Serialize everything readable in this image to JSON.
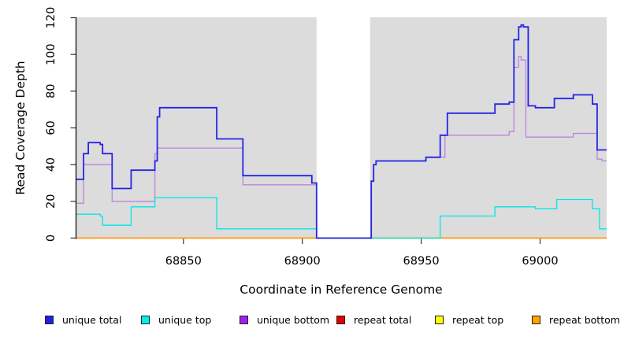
{
  "figure": {
    "xlabel": "Coordinate in Reference Genome",
    "ylabel": "Read Coverage Depth"
  },
  "legend": {
    "items": [
      {
        "label": "unique total",
        "color": "#1F1FE8"
      },
      {
        "label": "unique top",
        "color": "#00EEEE"
      },
      {
        "label": "unique bottom",
        "color": "#A020F0"
      },
      {
        "label": "repeat total",
        "color": "#E60000"
      },
      {
        "label": "repeat top",
        "color": "#FFFF00"
      },
      {
        "label": "repeat bottom",
        "color": "#FFA500"
      }
    ]
  },
  "chart_data": {
    "type": "line",
    "subtype": "step-after-coverage-plot",
    "title": "",
    "xlabel": "Coordinate in Reference Genome",
    "ylabel": "Read Coverage Depth",
    "xlim": [
      68805,
      69028
    ],
    "ylim": [
      0,
      120
    ],
    "x_ticks": [
      68850,
      68900,
      68950,
      69000
    ],
    "y_ticks": [
      0,
      20,
      40,
      60,
      80,
      100,
      120
    ],
    "grid": false,
    "legend_position": "bottom-horizontal",
    "panel_background": "#DCDCDC",
    "missing_data_band": {
      "x1": 68906,
      "x2": 68928.5,
      "color": "#FFFFFF"
    },
    "zero_overlap_segment": {
      "x1": 68929,
      "x2": 68958,
      "y": 0,
      "color": "#8FCF8F",
      "note": "unique top at 0 overlapping repeat lines renders green"
    },
    "series": [
      {
        "name": "unique total",
        "color": "#2424E8",
        "line_width": 1.8,
        "points": [
          [
            68805,
            32
          ],
          [
            68808,
            46
          ],
          [
            68810,
            52
          ],
          [
            68815,
            51
          ],
          [
            68816,
            46
          ],
          [
            68820,
            27
          ],
          [
            68828,
            37
          ],
          [
            68838,
            42
          ],
          [
            68839,
            66
          ],
          [
            68840,
            71
          ],
          [
            68864,
            54
          ],
          [
            68875,
            34
          ],
          [
            68904,
            30
          ],
          [
            68906,
            0
          ],
          [
            68929,
            31
          ],
          [
            68930,
            40
          ],
          [
            68931,
            42
          ],
          [
            68952,
            44
          ],
          [
            68958,
            56
          ],
          [
            68961,
            68
          ],
          [
            68981,
            73
          ],
          [
            68987,
            74
          ],
          [
            68989,
            108
          ],
          [
            68991,
            115
          ],
          [
            68992,
            116
          ],
          [
            68993,
            115
          ],
          [
            68995,
            72
          ],
          [
            68998,
            71
          ],
          [
            69006,
            76
          ],
          [
            69014,
            78
          ],
          [
            69022,
            73
          ],
          [
            69024,
            48
          ],
          [
            69028,
            48
          ]
        ]
      },
      {
        "name": "unique top",
        "color": "#00E8E8",
        "line_width": 1.3,
        "points": [
          [
            68805,
            13
          ],
          [
            68815,
            12
          ],
          [
            68816,
            7
          ],
          [
            68828,
            17
          ],
          [
            68838,
            22
          ],
          [
            68864,
            5
          ],
          [
            68906,
            0
          ],
          [
            68958,
            12
          ],
          [
            68981,
            17
          ],
          [
            68998,
            16
          ],
          [
            69007,
            21
          ],
          [
            69022,
            16
          ],
          [
            69025,
            5
          ],
          [
            69028,
            5
          ]
        ]
      },
      {
        "name": "unique bottom",
        "color": "#BE82DC",
        "line_width": 1.3,
        "points": [
          [
            68805,
            19
          ],
          [
            68808,
            40
          ],
          [
            68820,
            20
          ],
          [
            68838,
            46
          ],
          [
            68839,
            49
          ],
          [
            68875,
            29
          ],
          [
            68906,
            0
          ],
          [
            68929,
            31
          ],
          [
            68930,
            40
          ],
          [
            68931,
            42
          ],
          [
            68952,
            44
          ],
          [
            68960,
            56
          ],
          [
            68987,
            58
          ],
          [
            68989,
            93
          ],
          [
            68991,
            99
          ],
          [
            68992,
            97
          ],
          [
            68994,
            55
          ],
          [
            69014,
            57
          ],
          [
            69024,
            43
          ],
          [
            69026,
            42
          ],
          [
            69028,
            42
          ]
        ]
      },
      {
        "name": "repeat total",
        "color": "#E60000",
        "line_width": 1.2,
        "points": [
          [
            68805,
            0
          ],
          [
            69028,
            0
          ]
        ]
      },
      {
        "name": "repeat top",
        "color": "#FFFF00",
        "line_width": 1.2,
        "points": [
          [
            68805,
            0
          ],
          [
            69028,
            0
          ]
        ]
      },
      {
        "name": "repeat bottom",
        "color": "#FF9D1E",
        "line_width": 1.8,
        "points": [
          [
            68805,
            0
          ],
          [
            69028,
            0
          ]
        ]
      }
    ]
  }
}
